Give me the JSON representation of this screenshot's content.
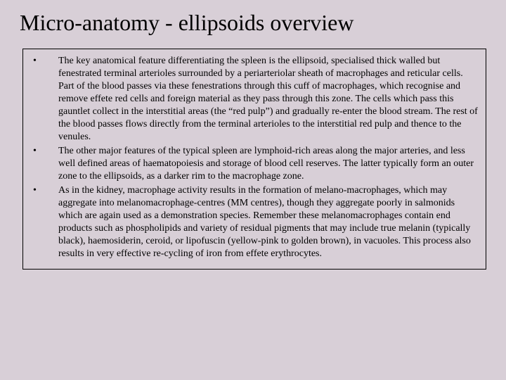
{
  "background_color": "#d8cfd7",
  "text_color": "#000000",
  "border_color": "#000000",
  "font_family": "Times New Roman",
  "title": {
    "text": "Micro-anatomy - ellipsoids overview",
    "fontsize": 32
  },
  "body_fontsize": 14,
  "bullets": [
    {
      "text": "The key anatomical feature differentiating the spleen is the ellipsoid, specialised thick walled but fenestrated terminal arterioles surrounded by a periarteriolar sheath of macrophages and reticular cells. Part of the blood passes via these fenestrations through this cuff of macrophages, which recognise and remove effete red cells and foreign material as they pass through this zone. The cells which pass this gauntlet collect in the interstitial areas (the “red pulp”) and gradually re-enter the blood stream. The rest of the blood passes flows directly from the terminal arterioles to the interstitial red pulp and thence to the venules."
    },
    {
      "text": "The other major features of the typical spleen are lymphoid-rich areas along the major arteries,  and less well defined areas of haematopoiesis and storage of blood cell reserves. The latter typically form an outer zone to the ellipsoids, as a darker rim to the macrophage zone."
    },
    {
      "text": "As in the kidney, macrophage activity results in the formation of melano-macrophages, which may aggregate into melanomacrophage-centres (MM centres), though they aggregate poorly in salmonids which are again used as a demonstration species. Remember these melanomacrophages contain end products such as phospholipids and variety of residual pigments that may include true melanin (typically black), haemosiderin, ceroid, or lipofuscin (yellow-pink to golden brown), in vacuoles. This process also results in very effective re-cycling of iron from effete erythrocytes."
    }
  ]
}
